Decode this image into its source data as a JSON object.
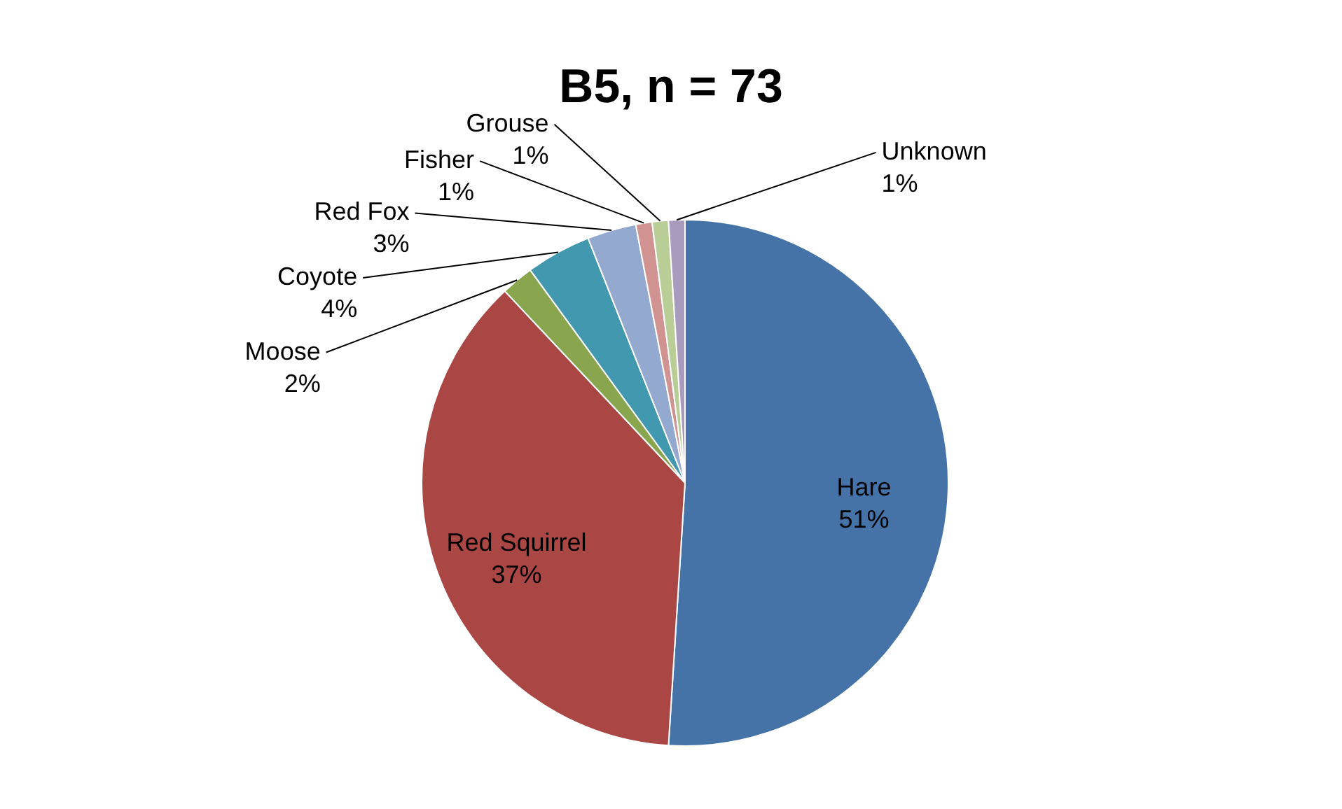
{
  "chart_data": {
    "type": "pie",
    "title": "B5, n = 73",
    "categories": [
      "Hare",
      "Red Squirrel",
      "Moose",
      "Coyote",
      "Red Fox",
      "Fisher",
      "Grouse",
      "Unknown"
    ],
    "values": [
      51,
      37,
      2,
      4,
      3,
      1,
      1,
      1
    ],
    "colors": [
      "#4572a7",
      "#aa4643",
      "#89a54e",
      "#4198af",
      "#93a9cf",
      "#d19392",
      "#b9cd96",
      "#a99bbd"
    ],
    "value_labels": [
      "51%",
      "37%",
      "2%",
      "4%",
      "3%",
      "1%",
      "1%",
      "1%"
    ]
  }
}
